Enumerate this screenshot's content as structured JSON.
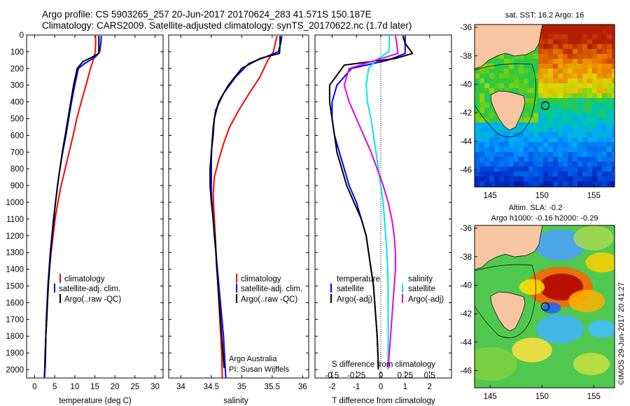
{
  "header": {
    "line1": "Argo profile: CS 5903265_257 20-Jun-2017 20170624_283 41.571S 150.187E",
    "line2": "Climatology: CARS2009. Satellite-adjusted climatology: synTS_20170622.nc (1.7d later)"
  },
  "side_stamp": "©IMOS 29-Jun-2017 20:41:27",
  "colors": {
    "climatology": "#ff0000",
    "satellite": "#0000ff",
    "argo": "#000000",
    "sal_satellite": "#00e6e6",
    "sal_argo": "#e600e6",
    "land": "#f7c6a0"
  },
  "chart_data": [
    {
      "type": "line",
      "name": "temperature-profile",
      "xlabel": "temperature (deg C)",
      "ylabel": "",
      "xlim": [
        -2,
        32
      ],
      "ylim": [
        2050,
        0
      ],
      "xticks": [
        0,
        5,
        10,
        15,
        20,
        25,
        30
      ],
      "yticks": [
        0,
        100,
        200,
        300,
        400,
        500,
        600,
        700,
        800,
        900,
        1000,
        1100,
        1200,
        1300,
        1400,
        1500,
        1600,
        1700,
        1800,
        1900,
        2000
      ],
      "legend": {
        "placement": "lower-center",
        "entries": [
          "climatology",
          "satellite-adj. clim.",
          "Argo(..raw -QC)"
        ]
      },
      "series": [
        {
          "name": "climatology",
          "color": "#ff0000",
          "points": [
            [
              15.2,
              5
            ],
            [
              15.2,
              50
            ],
            [
              15.1,
              100
            ],
            [
              14.6,
              150
            ],
            [
              13.9,
              200
            ],
            [
              12.8,
              300
            ],
            [
              11.6,
              400
            ],
            [
              10.5,
              500
            ],
            [
              9.6,
              600
            ],
            [
              8.6,
              700
            ],
            [
              7.6,
              800
            ],
            [
              6.6,
              900
            ],
            [
              5.8,
              1000
            ],
            [
              5.1,
              1100
            ],
            [
              4.6,
              1200
            ],
            [
              4.1,
              1300
            ],
            [
              3.7,
              1400
            ],
            [
              3.4,
              1500
            ],
            [
              3.2,
              1600
            ],
            [
              3.0,
              1700
            ],
            [
              2.8,
              1800
            ],
            [
              2.7,
              1900
            ],
            [
              2.6,
              2000
            ],
            [
              2.5,
              2050
            ]
          ]
        },
        {
          "name": "satellite-adj. clim.",
          "color": "#0000ff",
          "points": [
            [
              16.6,
              5
            ],
            [
              16.5,
              50
            ],
            [
              16.2,
              100
            ],
            [
              15.2,
              130
            ],
            [
              12.5,
              170
            ],
            [
              10.9,
              200
            ],
            [
              10.0,
              300
            ],
            [
              9.2,
              400
            ],
            [
              8.5,
              500
            ],
            [
              7.8,
              600
            ],
            [
              7.0,
              700
            ],
            [
              6.3,
              800
            ],
            [
              5.7,
              900
            ],
            [
              5.2,
              1000
            ],
            [
              4.7,
              1100
            ],
            [
              4.3,
              1200
            ],
            [
              3.9,
              1300
            ],
            [
              3.6,
              1400
            ],
            [
              3.3,
              1500
            ],
            [
              3.1,
              1600
            ],
            [
              2.9,
              1700
            ],
            [
              2.8,
              1800
            ],
            [
              2.6,
              1900
            ],
            [
              2.5,
              2000
            ],
            [
              2.4,
              2050
            ]
          ]
        },
        {
          "name": "Argo(..raw -QC)",
          "color": "#000000",
          "points": [
            [
              16.0,
              5
            ],
            [
              16.0,
              50
            ],
            [
              16.0,
              110
            ],
            [
              14.5,
              130
            ],
            [
              12.0,
              160
            ],
            [
              10.6,
              200
            ],
            [
              9.7,
              300
            ],
            [
              9.0,
              400
            ],
            [
              8.3,
              500
            ],
            [
              7.6,
              600
            ],
            [
              6.9,
              700
            ],
            [
              6.3,
              800
            ],
            [
              5.7,
              900
            ],
            [
              5.2,
              1000
            ],
            [
              4.8,
              1100
            ],
            [
              4.4,
              1200
            ],
            [
              4.0,
              1300
            ],
            [
              3.7,
              1400
            ],
            [
              3.4,
              1500
            ],
            [
              3.2,
              1600
            ],
            [
              3.0,
              1700
            ],
            [
              2.8,
              1800
            ],
            [
              2.7,
              1900
            ],
            [
              2.6,
              1990
            ]
          ]
        }
      ]
    },
    {
      "type": "line",
      "name": "salinity-profile",
      "xlabel": "salinity",
      "ylabel": "",
      "xlim": [
        33.8,
        36.1
      ],
      "ylim": [
        2050,
        0
      ],
      "xticks": [
        34,
        34.5,
        35,
        35.5,
        36
      ],
      "legend": {
        "placement": "lower-center",
        "entries": [
          "climatology",
          "satellite-adj. clim.",
          "Argo(..raw -QC)"
        ]
      },
      "annotations": [
        "Argo Australia",
        "PI: Susan Wijffels"
      ],
      "series": [
        {
          "name": "climatology",
          "color": "#ff0000",
          "points": [
            [
              35.58,
              5
            ],
            [
              35.55,
              50
            ],
            [
              35.52,
              100
            ],
            [
              35.43,
              150
            ],
            [
              35.3,
              250
            ],
            [
              35.12,
              350
            ],
            [
              34.95,
              450
            ],
            [
              34.8,
              550
            ],
            [
              34.7,
              650
            ],
            [
              34.62,
              750
            ],
            [
              34.55,
              850
            ],
            [
              34.53,
              950
            ],
            [
              34.55,
              1100
            ],
            [
              34.58,
              1300
            ],
            [
              34.61,
              1500
            ],
            [
              34.64,
              1700
            ],
            [
              34.67,
              1900
            ],
            [
              34.68,
              2050
            ]
          ]
        },
        {
          "name": "satellite-adj. clim.",
          "color": "#0000ff",
          "points": [
            [
              35.66,
              5
            ],
            [
              35.64,
              50
            ],
            [
              35.6,
              100
            ],
            [
              35.4,
              130
            ],
            [
              35.12,
              170
            ],
            [
              34.9,
              250
            ],
            [
              34.7,
              350
            ],
            [
              34.57,
              450
            ],
            [
              34.53,
              550
            ],
            [
              34.51,
              650
            ],
            [
              34.5,
              750
            ],
            [
              34.5,
              850
            ],
            [
              34.5,
              950
            ],
            [
              34.52,
              1050
            ],
            [
              34.55,
              1200
            ],
            [
              34.6,
              1400
            ],
            [
              34.65,
              1600
            ],
            [
              34.7,
              1800
            ],
            [
              34.73,
              2000
            ],
            [
              34.74,
              2050
            ]
          ]
        },
        {
          "name": "Argo(..raw -QC)",
          "color": "#000000",
          "points": [
            [
              35.63,
              5
            ],
            [
              35.63,
              50
            ],
            [
              35.62,
              110
            ],
            [
              35.3,
              140
            ],
            [
              35.0,
              200
            ],
            [
              34.78,
              300
            ],
            [
              34.62,
              400
            ],
            [
              34.55,
              500
            ],
            [
              34.53,
              600
            ],
            [
              34.5,
              700
            ],
            [
              34.48,
              800
            ],
            [
              34.48,
              900
            ],
            [
              34.5,
              1000
            ],
            [
              34.53,
              1100
            ],
            [
              34.56,
              1200
            ],
            [
              34.59,
              1400
            ],
            [
              34.63,
              1600
            ],
            [
              34.67,
              1800
            ],
            [
              34.71,
              1990
            ]
          ]
        }
      ]
    },
    {
      "type": "line",
      "name": "difference-profile",
      "xlabel": "T difference from climatology",
      "xlabel2": "S difference from climatology",
      "xlim": [
        -2.7,
        2.9
      ],
      "ylim": [
        2050,
        0
      ],
      "xticks": [
        -2,
        -1,
        0,
        1,
        2
      ],
      "xticks_top_labels": [
        "-0.5",
        "-0.25",
        "0",
        "0.25",
        "0.5"
      ],
      "legend": {
        "placement": "lower-center",
        "groups": [
          "temperature",
          "salinity"
        ],
        "entries": [
          "satellite",
          "Argo(-adj)",
          "satellite",
          "Argo(-adj)"
        ]
      },
      "series": [
        {
          "name": "temperature satellite",
          "color": "#0000ff",
          "points": [
            [
              1.0,
              5
            ],
            [
              1.0,
              50
            ],
            [
              1.0,
              110
            ],
            [
              0.3,
              150
            ],
            [
              -1.2,
              200
            ],
            [
              -1.8,
              300
            ],
            [
              -2.0,
              400
            ],
            [
              -2.0,
              500
            ],
            [
              -1.9,
              600
            ],
            [
              -1.7,
              700
            ],
            [
              -1.5,
              800
            ],
            [
              -1.3,
              900
            ],
            [
              -1.0,
              1000
            ],
            [
              -0.8,
              1100
            ],
            [
              -0.6,
              1200
            ],
            [
              -0.5,
              1300
            ],
            [
              -0.4,
              1400
            ],
            [
              -0.3,
              1500
            ],
            [
              -0.25,
              1600
            ],
            [
              -0.2,
              1700
            ],
            [
              -0.15,
              1800
            ],
            [
              -0.12,
              1900
            ],
            [
              -0.1,
              2000
            ]
          ]
        },
        {
          "name": "temperature Argo(-adj)",
          "color": "#000000",
          "points": [
            [
              0.9,
              5
            ],
            [
              1.0,
              50
            ],
            [
              1.3,
              110
            ],
            [
              0.6,
              140
            ],
            [
              -1.5,
              180
            ],
            [
              -2.1,
              300
            ],
            [
              -2.1,
              400
            ],
            [
              -2.0,
              500
            ],
            [
              -1.9,
              600
            ],
            [
              -1.8,
              700
            ],
            [
              -1.6,
              800
            ],
            [
              -1.4,
              900
            ],
            [
              -1.1,
              1000
            ],
            [
              -0.8,
              1100
            ],
            [
              -0.6,
              1200
            ],
            [
              -0.5,
              1300
            ],
            [
              -0.4,
              1400
            ],
            [
              -0.3,
              1500
            ],
            [
              -0.25,
              1600
            ],
            [
              -0.2,
              1700
            ],
            [
              -0.15,
              1800
            ],
            [
              -0.12,
              1900
            ],
            [
              -0.1,
              1990
            ]
          ]
        },
        {
          "name": "salinity satellite",
          "color": "#00e6e6",
          "points": [
            [
              0.35,
              5
            ],
            [
              0.35,
              50
            ],
            [
              0.33,
              100
            ],
            [
              -0.2,
              150
            ],
            [
              -0.5,
              200
            ],
            [
              -0.6,
              300
            ],
            [
              -0.55,
              400
            ],
            [
              -0.4,
              500
            ],
            [
              -0.3,
              600
            ],
            [
              -0.2,
              700
            ],
            [
              -0.1,
              800
            ],
            [
              0.0,
              900
            ],
            [
              0.1,
              1000
            ],
            [
              0.15,
              1100
            ],
            [
              0.2,
              1200
            ],
            [
              0.25,
              1300
            ],
            [
              0.28,
              1400
            ],
            [
              0.3,
              1500
            ],
            [
              0.3,
              1600
            ],
            [
              0.3,
              1700
            ],
            [
              0.3,
              1800
            ],
            [
              0.3,
              1900
            ],
            [
              0.3,
              2000
            ]
          ]
        },
        {
          "name": "salinity Argo(-adj)",
          "color": "#e600e6",
          "points": [
            [
              0.6,
              5
            ],
            [
              0.65,
              50
            ],
            [
              0.7,
              110
            ],
            [
              -0.2,
              150
            ],
            [
              -1.3,
              200
            ],
            [
              -1.5,
              300
            ],
            [
              -1.3,
              400
            ],
            [
              -1.0,
              500
            ],
            [
              -0.7,
              600
            ],
            [
              -0.4,
              700
            ],
            [
              -0.15,
              800
            ],
            [
              0.1,
              900
            ],
            [
              0.3,
              1000
            ],
            [
              0.45,
              1100
            ],
            [
              0.55,
              1200
            ],
            [
              0.6,
              1300
            ],
            [
              0.6,
              1400
            ],
            [
              0.55,
              1500
            ],
            [
              0.5,
              1600
            ],
            [
              0.45,
              1700
            ],
            [
              0.4,
              1800
            ],
            [
              0.35,
              1900
            ],
            [
              0.3,
              1990
            ]
          ]
        }
      ]
    },
    {
      "type": "heatmap",
      "name": "sst-map",
      "title": "sat. SST: 16.2  Argo: 16",
      "xlim": [
        143.5,
        157
      ],
      "ylim": [
        -47.2,
        -35.8
      ],
      "xticks": [
        145,
        150,
        155
      ],
      "yticks": [
        -36,
        -38,
        -40,
        -42,
        -44,
        -46
      ],
      "marker": {
        "lon": 150.187,
        "lat": -41.571
      }
    },
    {
      "type": "heatmap",
      "name": "sla-map",
      "title": "Altim. SLA: -0.2",
      "subtitle": "Argo h1000: -0.16  h2000: -0.29",
      "xlim": [
        143.5,
        157
      ],
      "ylim": [
        -47.2,
        -35.8
      ],
      "xticks": [
        145,
        150,
        155
      ],
      "yticks": [
        -36,
        -38,
        -40,
        -42,
        -44,
        -46
      ],
      "marker": {
        "lon": 150.187,
        "lat": -41.571
      }
    }
  ]
}
